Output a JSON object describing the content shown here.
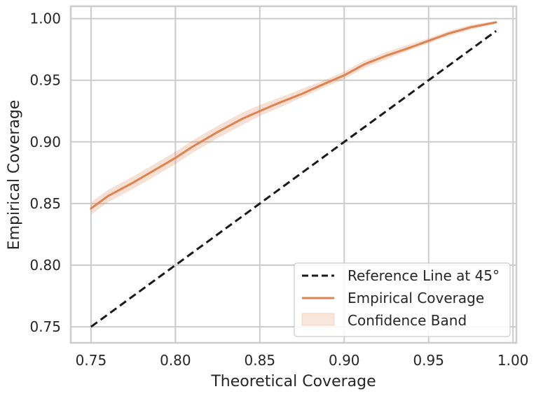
{
  "chart_data": {
    "type": "line",
    "xlabel": "Theoretical Coverage",
    "ylabel": "Empirical Coverage",
    "xlim": [
      0.738,
      1.002
    ],
    "ylim": [
      0.737,
      1.01
    ],
    "xticks": [
      "0.75",
      "0.80",
      "0.85",
      "0.90",
      "0.95",
      "1.00"
    ],
    "yticks": [
      "0.75",
      "0.80",
      "0.85",
      "0.90",
      "0.95",
      "1.00"
    ],
    "grid": true,
    "legend_position": "bottom-right",
    "series": [
      {
        "name": "Reference Line at 45°",
        "style": "dashed",
        "color": "#1a1a1a",
        "x": [
          0.75,
          0.99
        ],
        "y": [
          0.75,
          0.99
        ]
      },
      {
        "name": "Empirical Coverage",
        "style": "solid",
        "color": "#dd8452",
        "x": [
          0.75,
          0.76,
          0.775,
          0.79,
          0.8,
          0.81,
          0.825,
          0.84,
          0.85,
          0.862,
          0.875,
          0.888,
          0.9,
          0.912,
          0.925,
          0.938,
          0.95,
          0.962,
          0.975,
          0.99
        ],
        "y": [
          0.846,
          0.856,
          0.867,
          0.879,
          0.887,
          0.896,
          0.908,
          0.919,
          0.925,
          0.932,
          0.939,
          0.947,
          0.954,
          0.963,
          0.97,
          0.976,
          0.982,
          0.988,
          0.993,
          0.997
        ]
      },
      {
        "name": "Confidence Band",
        "style": "band",
        "color": "#dd8452",
        "x": [
          0.75,
          0.76,
          0.775,
          0.79,
          0.8,
          0.81,
          0.825,
          0.84,
          0.85,
          0.862,
          0.875,
          0.888,
          0.9,
          0.912,
          0.925,
          0.938,
          0.95,
          0.962,
          0.975,
          0.99
        ],
        "lower": [
          0.841,
          0.851,
          0.862,
          0.874,
          0.882,
          0.891,
          0.903,
          0.914,
          0.921,
          0.928,
          0.936,
          0.944,
          0.951,
          0.96,
          0.967,
          0.974,
          0.98,
          0.986,
          0.991,
          0.996
        ],
        "upper": [
          0.851,
          0.861,
          0.872,
          0.884,
          0.892,
          0.901,
          0.913,
          0.924,
          0.93,
          0.936,
          0.943,
          0.95,
          0.957,
          0.966,
          0.973,
          0.979,
          0.984,
          0.99,
          0.995,
          0.998
        ]
      }
    ]
  }
}
